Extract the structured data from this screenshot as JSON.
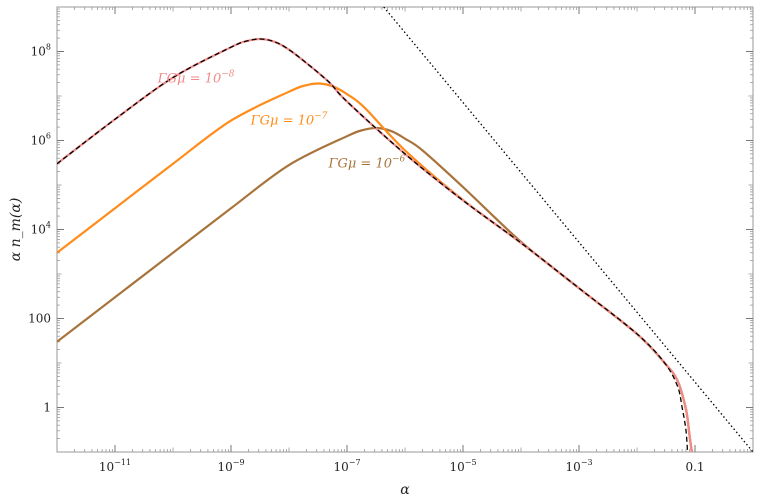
{
  "chart_data": {
    "type": "line",
    "title": "",
    "xlabel": "α",
    "ylabel": "α n_m(α)",
    "xscale": "log",
    "yscale": "log",
    "xlim": [
      1e-12,
      1
    ],
    "ylim": [
      0.1,
      1000000000.0
    ],
    "frame": "box",
    "grid": false,
    "x_ticks": [
      {
        "value": 1e-11,
        "base": "10",
        "exp": "−11"
      },
      {
        "value": 1e-09,
        "base": "10",
        "exp": "−9"
      },
      {
        "value": 1e-07,
        "base": "10",
        "exp": "−7"
      },
      {
        "value": 1e-05,
        "base": "10",
        "exp": "−5"
      },
      {
        "value": 0.001,
        "base": "10",
        "exp": "−3"
      },
      {
        "value": 0.1,
        "base": "0.1",
        "exp": ""
      }
    ],
    "y_ticks": [
      {
        "value": 1,
        "base": "1",
        "exp": ""
      },
      {
        "value": 100,
        "base": "100",
        "exp": ""
      },
      {
        "value": 10000,
        "base": "10",
        "exp": "4"
      },
      {
        "value": 1000000,
        "base": "10",
        "exp": "6"
      },
      {
        "value": 100000000,
        "base": "10",
        "exp": "8"
      }
    ],
    "series": [
      {
        "name": "ΓGμ = 10^−8",
        "label_prefix": "ΓGμ = 10",
        "label_exp": "−8",
        "color": "#f08a8a",
        "style": "solid",
        "x": [
          1e-12,
          1e-11,
          1e-10,
          1e-09,
          2e-09,
          3.5e-09,
          6e-09,
          1e-08,
          2e-08,
          5e-08,
          1e-07,
          1e-06,
          1e-05,
          0.0001,
          0.001,
          0.01,
          0.03,
          0.05,
          0.07,
          0.08,
          0.09
        ],
        "y": [
          300000.0,
          3000000.0,
          26000000.0,
          125000000.0,
          175000000.0,
          190000000.0,
          160000000.0,
          110000000.0,
          55000000.0,
          20000000.0,
          7500000.0,
          500000.0,
          45000.0,
          5000.0,
          480,
          45,
          10,
          4,
          0.9,
          0.25,
          0.08
        ]
      },
      {
        "name": "ΓGμ = 10^−7",
        "label_prefix": "ΓGμ = 10",
        "label_exp": "−7",
        "color": "#ff8c1a",
        "style": "solid",
        "x": [
          1e-12,
          1e-11,
          1e-10,
          1e-09,
          1e-08,
          2e-08,
          3.5e-08,
          6e-08,
          1e-07,
          2e-07,
          1e-06,
          1e-05,
          0.0001,
          0.001,
          0.01,
          0.03,
          0.05,
          0.07,
          0.08,
          0.09
        ],
        "y": [
          3000.0,
          30000.0,
          300000.0,
          2800000.0,
          12500000.0,
          17500000.0,
          19000000.0,
          16000000.0,
          11000000.0,
          5500000.0,
          600000.0,
          46000.0,
          5000.0,
          480,
          45,
          10,
          4,
          0.9,
          0.25,
          0.08
        ]
      },
      {
        "name": "ΓGμ = 10^−6",
        "label_prefix": "ΓGμ = 10",
        "label_exp": "−6",
        "color": "#a8743c",
        "style": "solid",
        "x": [
          1e-12,
          1e-11,
          1e-10,
          1e-09,
          1e-08,
          1e-07,
          2e-07,
          3.5e-07,
          6e-07,
          1e-06,
          2e-06,
          1e-05,
          0.0001,
          0.001,
          0.01,
          0.03,
          0.05,
          0.07,
          0.08,
          0.09
        ],
        "y": [
          30,
          300,
          3000.0,
          30000.0,
          280000.0,
          1250000.0,
          1750000.0,
          1900000.0,
          1600000.0,
          1100000.0,
          600000.0,
          90000.0,
          5300.0,
          480,
          45,
          10,
          4,
          0.9,
          0.25,
          0.08
        ]
      },
      {
        "name": "",
        "color": "#000000",
        "style": "dashed",
        "x": [
          1e-12,
          1e-11,
          1e-10,
          1e-09,
          2e-09,
          3.5e-09,
          6e-09,
          1e-08,
          2e-08,
          5e-08,
          1e-07,
          1e-06,
          1e-05,
          0.0001,
          0.001,
          0.01,
          0.03,
          0.05,
          0.06,
          0.07,
          0.075
        ],
        "y": [
          300000.0,
          3000000.0,
          26000000.0,
          125000000.0,
          175000000.0,
          190000000.0,
          160000000.0,
          110000000.0,
          55000000.0,
          20000000.0,
          7500000.0,
          500000.0,
          45000.0,
          5000.0,
          480,
          45,
          10,
          3,
          1,
          0.3,
          0.08
        ]
      },
      {
        "name": "",
        "color": "#000000",
        "style": "dotted",
        "x": [
          4.3e-07,
          1
        ],
        "y": [
          1000000000.0,
          0.1
        ]
      }
    ]
  }
}
